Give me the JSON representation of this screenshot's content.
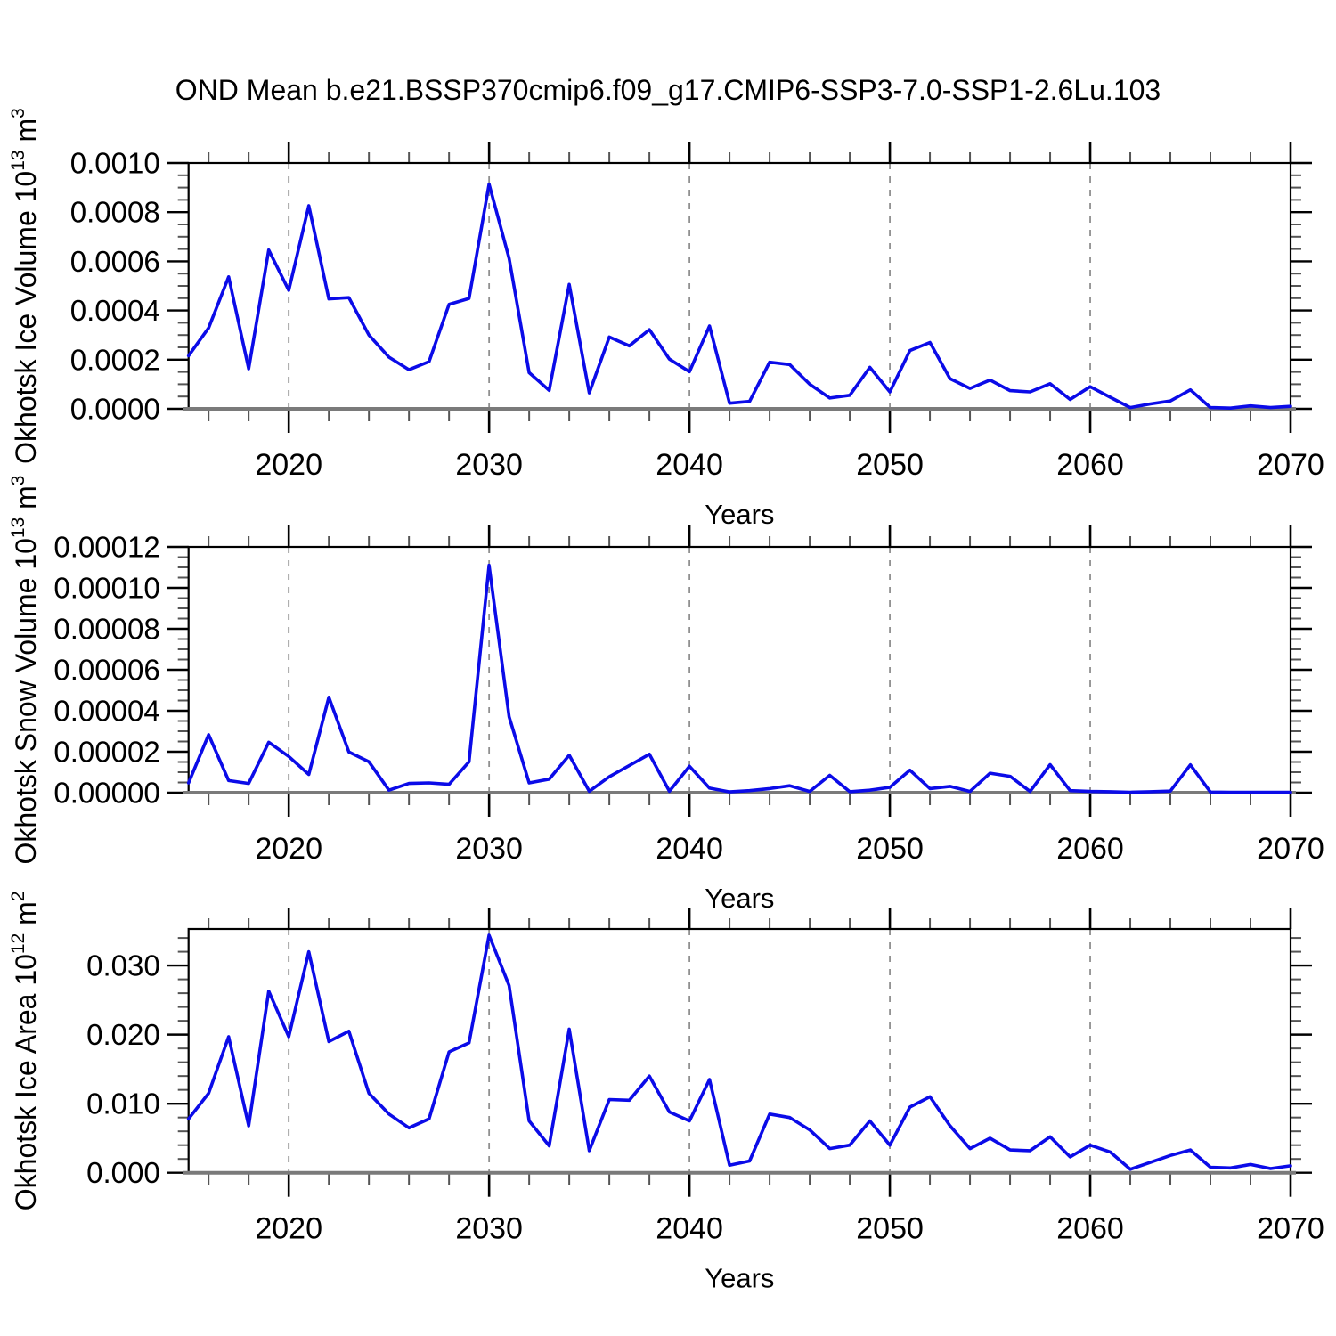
{
  "title": "OND Mean b.e21.BSSP370cmip6.f09_g17.CMIP6-SSP3-7.0-SSP1-2.6Lu.103",
  "line_color": "#0b0be8",
  "grid_color": "#909090",
  "baseline_color": "#7a7a7a",
  "chart_data": [
    {
      "type": "line",
      "name": "ice-volume",
      "ylabel": "Okhotsk Ice Volume 10^13 m^3",
      "ylabel_parts": [
        {
          "t": "Okhotsk Ice Volume 10"
        },
        {
          "t": "13",
          "sup": true
        },
        {
          "t": " m"
        },
        {
          "t": "3",
          "sup": true
        }
      ],
      "xlabel": "Years",
      "xlim": [
        2015,
        2070
      ],
      "ylim": [
        0,
        0.001
      ],
      "grid": "vertical-dashed",
      "legend": "none",
      "x": [
        2015,
        2016,
        2017,
        2018,
        2019,
        2020,
        2021,
        2022,
        2023,
        2024,
        2025,
        2026,
        2027,
        2028,
        2029,
        2030,
        2031,
        2032,
        2033,
        2034,
        2035,
        2036,
        2037,
        2038,
        2039,
        2040,
        2041,
        2042,
        2043,
        2044,
        2045,
        2046,
        2047,
        2048,
        2049,
        2050,
        2051,
        2052,
        2053,
        2054,
        2055,
        2056,
        2057,
        2058,
        2059,
        2060,
        2061,
        2062,
        2063,
        2064,
        2065,
        2066,
        2067,
        2068,
        2069,
        2070
      ],
      "y": [
        0.000216,
        0.000329,
        0.000537,
        0.000163,
        0.000646,
        0.000482,
        0.000826,
        0.000447,
        0.000452,
        0.0003,
        0.00021,
        0.000159,
        0.000192,
        0.000425,
        0.000449,
        0.000914,
        0.000612,
        0.000147,
        7.5e-05,
        0.000506,
        6.5e-05,
        0.000292,
        0.000256,
        0.000322,
        0.000202,
        0.000151,
        0.000337,
        2.3e-05,
        3e-05,
        0.00019,
        0.00018,
        0.0001,
        4.4e-05,
        5.5e-05,
        0.000169,
        6.9e-05,
        0.000237,
        0.00027,
        0.000123,
        8.3e-05,
        0.000117,
        7.4e-05,
        6.9e-05,
        0.000102,
        3.8e-05,
        9e-05,
        4.7e-05,
        5e-06,
        2e-05,
        3.2e-05,
        7.7e-05,
        5e-06,
        3e-06,
        1.2e-05,
        5e-06,
        1e-05
      ],
      "ytick_values": [
        0,
        0.0002,
        0.0004,
        0.0006,
        0.0008,
        0.001
      ],
      "ytick_labels": [
        "0.0000",
        "0.0002",
        "0.0004",
        "0.0006",
        "0.0008",
        "0.0010"
      ],
      "yminor_step": 5e-05,
      "xtick_values": [
        2020,
        2030,
        2040,
        2050,
        2060,
        2070
      ],
      "xtick_labels": [
        "2020",
        "2030",
        "2040",
        "2050",
        "2060",
        "2070"
      ],
      "xminor_step": 2,
      "grid_x": [
        2020,
        2030,
        2040,
        2050,
        2060
      ]
    },
    {
      "type": "line",
      "name": "snow-volume",
      "ylabel": "Okhotsk Snow Volume 10^13 m^3",
      "ylabel_parts": [
        {
          "t": "Okhotsk Snow Volume 10"
        },
        {
          "t": "13",
          "sup": true
        },
        {
          "t": " m"
        },
        {
          "t": "3",
          "sup": true
        }
      ],
      "xlabel": "Years",
      "xlim": [
        2015,
        2070
      ],
      "ylim": [
        0,
        0.00012
      ],
      "grid": "vertical-dashed",
      "legend": "none",
      "x": [
        2015,
        2016,
        2017,
        2018,
        2019,
        2020,
        2021,
        2022,
        2023,
        2024,
        2025,
        2026,
        2027,
        2028,
        2029,
        2030,
        2031,
        2032,
        2033,
        2034,
        2035,
        2036,
        2037,
        2038,
        2039,
        2040,
        2041,
        2042,
        2043,
        2044,
        2045,
        2046,
        2047,
        2048,
        2049,
        2050,
        2051,
        2052,
        2053,
        2054,
        2055,
        2056,
        2057,
        2058,
        2059,
        2060,
        2061,
        2062,
        2063,
        2064,
        2065,
        2066,
        2067,
        2068,
        2069,
        2070
      ],
      "y": [
        4.8e-06,
        2.83e-05,
        5.9e-06,
        4.5e-06,
        2.46e-05,
        1.77e-05,
        8.9e-06,
        4.66e-05,
        1.99e-05,
        1.51e-05,
        1.2e-06,
        4.5e-06,
        4.8e-06,
        4.1e-06,
        1.51e-05,
        0.000111,
        3.71e-05,
        4.8e-06,
        6.6e-06,
        1.83e-05,
        7e-07,
        7.8e-06,
        1.33e-05,
        1.88e-05,
        7e-07,
        1.29e-05,
        2.2e-06,
        4e-07,
        1e-06,
        2e-06,
        3.4e-06,
        6e-07,
        8.5e-06,
        5e-07,
        1.2e-06,
        2.6e-06,
        1.1e-05,
        2e-06,
        3.1e-06,
        6e-07,
        9.5e-06,
        8e-06,
        6e-07,
        1.37e-05,
        1e-06,
        6e-07,
        5e-07,
        2e-07,
        5e-07,
        8e-07,
        1.36e-05,
        3e-07,
        2e-07,
        2e-07,
        2e-07,
        2e-07
      ],
      "ytick_values": [
        0,
        2e-05,
        4e-05,
        6e-05,
        8e-05,
        0.0001,
        0.00012
      ],
      "ytick_labels": [
        "0.00000",
        "0.00002",
        "0.00004",
        "0.00006",
        "0.00008",
        "0.00010",
        "0.00012"
      ],
      "yminor_step": 5e-06,
      "xtick_values": [
        2020,
        2030,
        2040,
        2050,
        2060,
        2070
      ],
      "xtick_labels": [
        "2020",
        "2030",
        "2040",
        "2050",
        "2060",
        "2070"
      ],
      "xminor_step": 2,
      "grid_x": [
        2020,
        2030,
        2040,
        2050,
        2060
      ]
    },
    {
      "type": "line",
      "name": "ice-area",
      "ylabel": "Okhotsk Ice Area 10^12 m^2",
      "ylabel_parts": [
        {
          "t": "Okhotsk Ice Area 10"
        },
        {
          "t": "12",
          "sup": true
        },
        {
          "t": " m"
        },
        {
          "t": "2",
          "sup": true
        }
      ],
      "xlabel": "Years",
      "xlim": [
        2015,
        2070
      ],
      "ylim": [
        0,
        0.0353
      ],
      "grid": "vertical-dashed",
      "legend": "none",
      "x": [
        2015,
        2016,
        2017,
        2018,
        2019,
        2020,
        2021,
        2022,
        2023,
        2024,
        2025,
        2026,
        2027,
        2028,
        2029,
        2030,
        2031,
        2032,
        2033,
        2034,
        2035,
        2036,
        2037,
        2038,
        2039,
        2040,
        2041,
        2042,
        2043,
        2044,
        2045,
        2046,
        2047,
        2048,
        2049,
        2050,
        2051,
        2052,
        2053,
        2054,
        2055,
        2056,
        2057,
        2058,
        2059,
        2060,
        2061,
        2062,
        2063,
        2064,
        2065,
        2066,
        2067,
        2068,
        2069,
        2070
      ],
      "y": [
        0.0078,
        0.0115,
        0.0197,
        0.0068,
        0.0263,
        0.0197,
        0.032,
        0.019,
        0.0205,
        0.0115,
        0.0085,
        0.0065,
        0.0078,
        0.0175,
        0.0188,
        0.0344,
        0.0271,
        0.0075,
        0.0039,
        0.0208,
        0.0032,
        0.0106,
        0.0105,
        0.014,
        0.0088,
        0.0075,
        0.0135,
        0.0011,
        0.0017,
        0.0085,
        0.008,
        0.0062,
        0.0035,
        0.004,
        0.0075,
        0.004,
        0.0095,
        0.011,
        0.0068,
        0.0035,
        0.005,
        0.0033,
        0.0032,
        0.0052,
        0.0023,
        0.004,
        0.003,
        0.0005,
        0.0015,
        0.0025,
        0.0033,
        0.0008,
        0.0007,
        0.0012,
        0.0006,
        0.001
      ],
      "ytick_values": [
        0,
        0.01,
        0.02,
        0.03
      ],
      "ytick_labels": [
        "0.000",
        "0.010",
        "0.020",
        "0.030"
      ],
      "yminor_step": 0.002,
      "xtick_values": [
        2020,
        2030,
        2040,
        2050,
        2060,
        2070
      ],
      "xtick_labels": [
        "2020",
        "2030",
        "2040",
        "2050",
        "2060",
        "2070"
      ],
      "xminor_step": 2,
      "grid_x": [
        2020,
        2030,
        2040,
        2050,
        2060
      ]
    }
  ]
}
